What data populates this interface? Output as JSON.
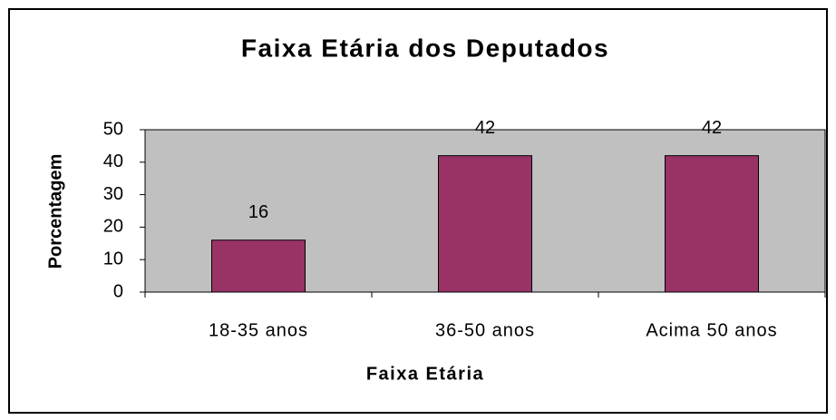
{
  "chart_data": {
    "type": "bar",
    "title": "Faixa Etária dos Deputados",
    "x_label": "Faixa Etária",
    "y_label": "Porcentagem",
    "categories": [
      "18-35 anos",
      "36-50 anos",
      "Acima 50 anos"
    ],
    "values": [
      16,
      42,
      42
    ],
    "color": "#993366",
    "ylim": [
      0,
      50
    ],
    "yticks": [
      0,
      10,
      20,
      30,
      40,
      50
    ],
    "grid": false
  }
}
